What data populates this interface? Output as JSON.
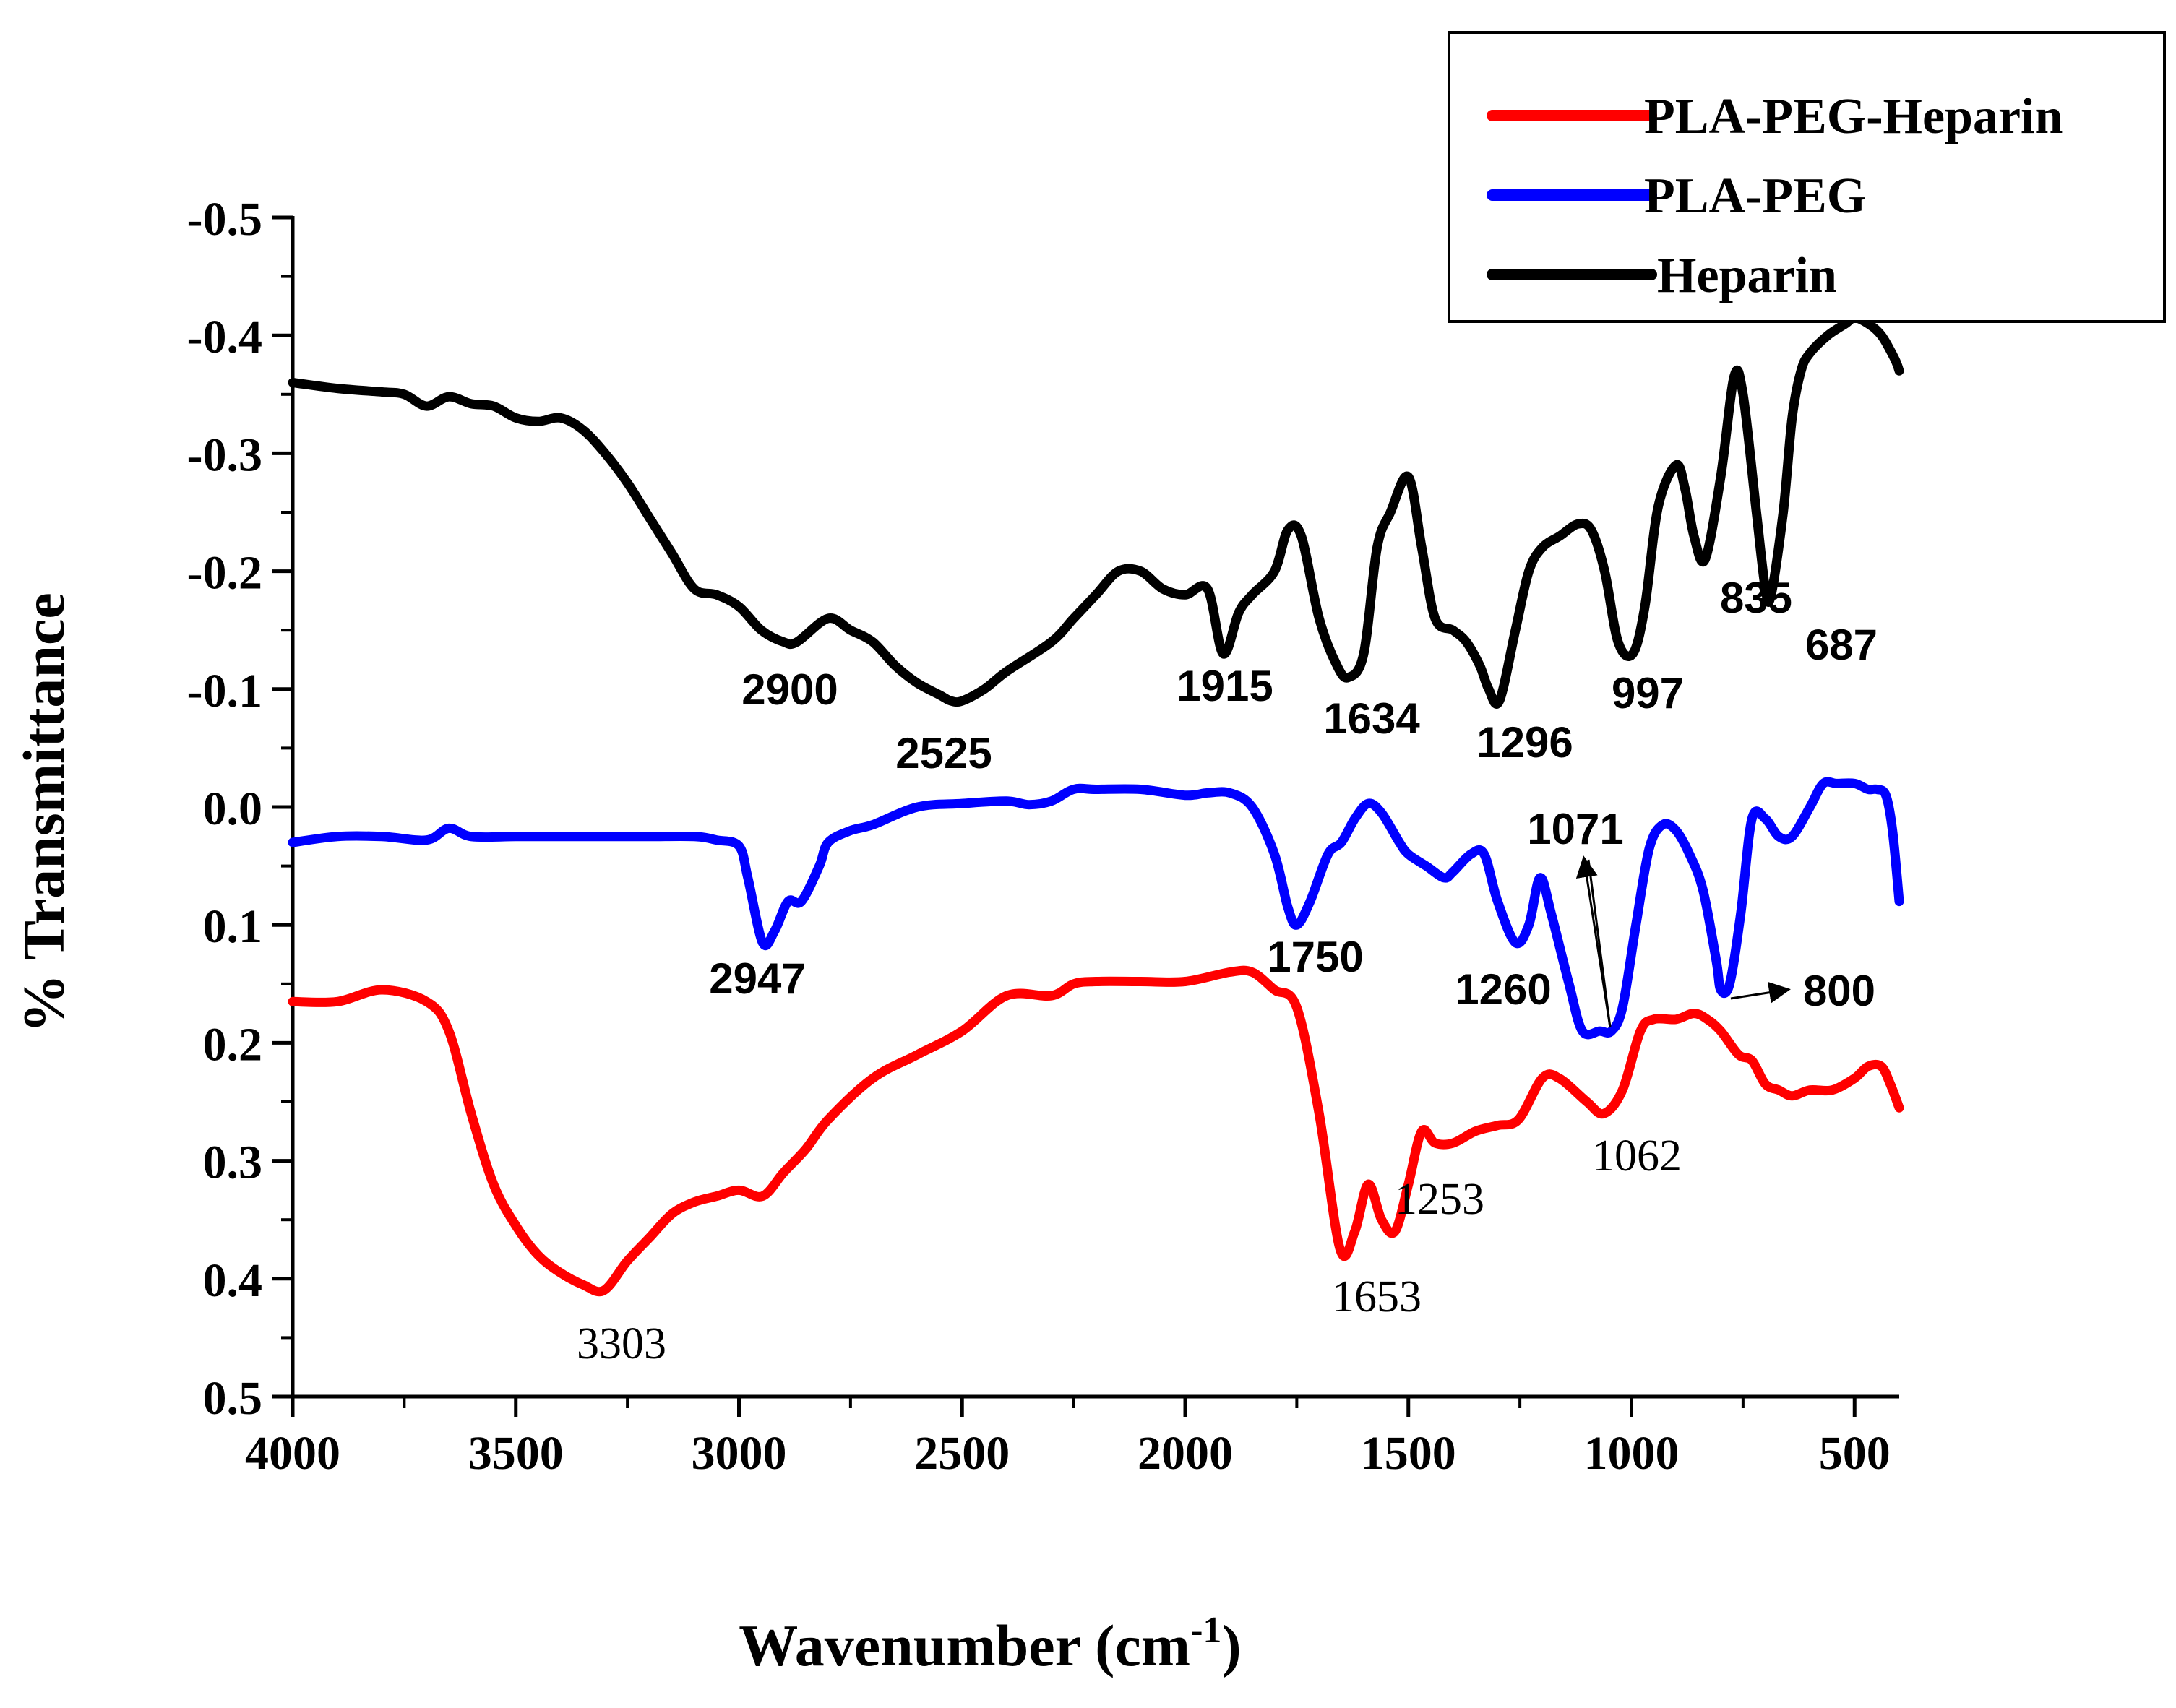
{
  "chart_data": {
    "type": "line",
    "title": "",
    "xlabel": "Wavenumber (cm",
    "xlabel_sup": "-1",
    "xlabel_end": ")",
    "ylabel": "% Transmittance",
    "xlim": [
      4000,
      400
    ],
    "ylim": [
      0.5,
      -0.5
    ],
    "x_ticks": [
      "4000",
      "3500",
      "3000",
      "2500",
      "2000",
      "1500",
      "1000",
      "500"
    ],
    "x_tick_values": [
      4000,
      3500,
      3000,
      2500,
      2000,
      1500,
      1000,
      500
    ],
    "y_ticks": [
      "-0.5",
      "-0.4",
      "-0.3",
      "-0.2",
      "-0.1",
      "0.0",
      "0.1",
      "0.2",
      "0.3",
      "0.4",
      "0.5"
    ],
    "y_tick_values": [
      -0.5,
      -0.4,
      -0.3,
      -0.2,
      -0.1,
      0.0,
      0.1,
      0.2,
      0.3,
      0.4,
      0.5
    ],
    "legend_position": "top-right",
    "series": [
      {
        "name": "PLA-PEG-Heparin",
        "color": "#ff0000",
        "x": [
          4000,
          3900,
          3800,
          3700,
          3650,
          3600,
          3550,
          3500,
          3450,
          3400,
          3350,
          3303,
          3250,
          3200,
          3150,
          3100,
          3050,
          3000,
          2947,
          2900,
          2850,
          2800,
          2700,
          2600,
          2500,
          2400,
          2300,
          2250,
          2200,
          2100,
          2000,
          1900,
          1850,
          1800,
          1750,
          1700,
          1653,
          1620,
          1590,
          1560,
          1530,
          1500,
          1470,
          1440,
          1400,
          1350,
          1300,
          1253,
          1200,
          1162,
          1100,
          1062,
          1020,
          980,
          950,
          900,
          860,
          830,
          800,
          760,
          730,
          700,
          670,
          640,
          600,
          550,
          500,
          470,
          440,
          420,
          400
        ],
        "values": [
          0.165,
          0.165,
          0.155,
          0.165,
          0.19,
          0.26,
          0.32,
          0.355,
          0.38,
          0.395,
          0.405,
          0.41,
          0.385,
          0.365,
          0.345,
          0.335,
          0.33,
          0.325,
          0.33,
          0.31,
          0.29,
          0.265,
          0.23,
          0.21,
          0.19,
          0.16,
          0.16,
          0.15,
          0.148,
          0.148,
          0.148,
          0.14,
          0.14,
          0.155,
          0.17,
          0.26,
          0.375,
          0.36,
          0.32,
          0.35,
          0.36,
          0.32,
          0.275,
          0.285,
          0.285,
          0.275,
          0.27,
          0.265,
          0.23,
          0.23,
          0.25,
          0.26,
          0.24,
          0.19,
          0.18,
          0.18,
          0.175,
          0.18,
          0.19,
          0.21,
          0.215,
          0.235,
          0.24,
          0.245,
          0.24,
          0.24,
          0.23,
          0.22,
          0.22,
          0.235,
          0.255
        ]
      },
      {
        "name": "PLA-PEG",
        "color": "#0000ff",
        "x": [
          4000,
          3900,
          3800,
          3700,
          3650,
          3600,
          3500,
          3400,
          3300,
          3200,
          3100,
          3050,
          3000,
          2980,
          2947,
          2920,
          2890,
          2860,
          2820,
          2800,
          2750,
          2700,
          2600,
          2500,
          2400,
          2350,
          2300,
          2250,
          2200,
          2100,
          2000,
          1950,
          1900,
          1850,
          1800,
          1770,
          1750,
          1720,
          1680,
          1650,
          1620,
          1590,
          1560,
          1520,
          1500,
          1460,
          1420,
          1400,
          1360,
          1330,
          1300,
          1260,
          1230,
          1205,
          1180,
          1140,
          1110,
          1071,
          1045,
          1020,
          990,
          960,
          930,
          900,
          870,
          840,
          810,
          800,
          780,
          755,
          730,
          700,
          670,
          640,
          600,
          570,
          540,
          500,
          470,
          450,
          430,
          415,
          400
        ],
        "values": [
          0.03,
          0.025,
          0.025,
          0.028,
          0.018,
          0.025,
          0.025,
          0.025,
          0.025,
          0.025,
          0.025,
          0.028,
          0.033,
          0.06,
          0.115,
          0.105,
          0.08,
          0.08,
          0.05,
          0.03,
          0.02,
          0.015,
          0.0,
          -0.003,
          -0.005,
          -0.002,
          -0.005,
          -0.015,
          -0.015,
          -0.015,
          -0.01,
          -0.012,
          -0.012,
          0.0,
          0.04,
          0.085,
          0.1,
          0.08,
          0.04,
          0.03,
          0.01,
          -0.003,
          0.005,
          0.03,
          0.04,
          0.05,
          0.06,
          0.055,
          0.04,
          0.04,
          0.08,
          0.115,
          0.1,
          0.06,
          0.09,
          0.15,
          0.19,
          0.19,
          0.19,
          0.17,
          0.1,
          0.035,
          0.015,
          0.02,
          0.04,
          0.07,
          0.13,
          0.155,
          0.15,
          0.09,
          0.01,
          0.01,
          0.025,
          0.025,
          0.0,
          -0.02,
          -0.02,
          -0.02,
          -0.015,
          -0.015,
          -0.01,
          0.02,
          0.08
        ]
      },
      {
        "name": "Heparin",
        "color": "#000000",
        "x": [
          4000,
          3900,
          3800,
          3750,
          3700,
          3650,
          3600,
          3550,
          3500,
          3450,
          3400,
          3350,
          3300,
          3250,
          3200,
          3150,
          3100,
          3050,
          3000,
          2950,
          2900,
          2870,
          2800,
          2750,
          2700,
          2650,
          2600,
          2550,
          2525,
          2500,
          2450,
          2400,
          2300,
          2250,
          2200,
          2150,
          2100,
          2050,
          2000,
          1950,
          1915,
          1880,
          1850,
          1800,
          1770,
          1740,
          1700,
          1660,
          1634,
          1600,
          1570,
          1540,
          1500,
          1470,
          1440,
          1400,
          1370,
          1340,
          1320,
          1296,
          1260,
          1230,
          1200,
          1160,
          1120,
          1090,
          1060,
          1030,
          997,
          970,
          940,
          900,
          880,
          860,
          835,
          800,
          770,
          750,
          720,
          700,
          687,
          660,
          640,
          620,
          600,
          560,
          520,
          500,
          470,
          440,
          410,
          400
        ],
        "values": [
          -0.36,
          -0.355,
          -0.352,
          -0.35,
          -0.34,
          -0.348,
          -0.342,
          -0.34,
          -0.33,
          -0.327,
          -0.33,
          -0.32,
          -0.3,
          -0.275,
          -0.245,
          -0.215,
          -0.185,
          -0.18,
          -0.17,
          -0.15,
          -0.14,
          -0.14,
          -0.16,
          -0.15,
          -0.14,
          -0.12,
          -0.105,
          -0.095,
          -0.09,
          -0.09,
          -0.1,
          -0.115,
          -0.14,
          -0.16,
          -0.18,
          -0.2,
          -0.2,
          -0.185,
          -0.18,
          -0.185,
          -0.13,
          -0.165,
          -0.18,
          -0.2,
          -0.235,
          -0.23,
          -0.16,
          -0.12,
          -0.11,
          -0.13,
          -0.22,
          -0.25,
          -0.28,
          -0.22,
          -0.16,
          -0.15,
          -0.14,
          -0.12,
          -0.1,
          -0.09,
          -0.15,
          -0.2,
          -0.22,
          -0.23,
          -0.24,
          -0.235,
          -0.2,
          -0.14,
          -0.13,
          -0.17,
          -0.255,
          -0.29,
          -0.27,
          -0.23,
          -0.21,
          -0.28,
          -0.365,
          -0.35,
          -0.25,
          -0.185,
          -0.18,
          -0.25,
          -0.33,
          -0.37,
          -0.385,
          -0.4,
          -0.41,
          -0.415,
          -0.41,
          -0.4,
          -0.38,
          -0.37
        ]
      }
    ],
    "annotations": [
      {
        "text": "3303",
        "style": "serif"
      },
      {
        "text": "1653",
        "style": "serif"
      },
      {
        "text": "1253",
        "style": "serif"
      },
      {
        "text": "1062",
        "style": "serif"
      },
      {
        "text": "2947",
        "style": "sans"
      },
      {
        "text": "1750",
        "style": "sans"
      },
      {
        "text": "1260",
        "style": "sans"
      },
      {
        "text": "1071",
        "style": "sans"
      },
      {
        "text": "800",
        "style": "sans"
      },
      {
        "text": "2900",
        "style": "sans"
      },
      {
        "text": "2525",
        "style": "sans"
      },
      {
        "text": "1915",
        "style": "sans"
      },
      {
        "text": "1634",
        "style": "sans"
      },
      {
        "text": "1296",
        "style": "sans"
      },
      {
        "text": "997",
        "style": "sans"
      },
      {
        "text": "835",
        "style": "sans"
      },
      {
        "text": "687",
        "style": "sans"
      }
    ]
  }
}
